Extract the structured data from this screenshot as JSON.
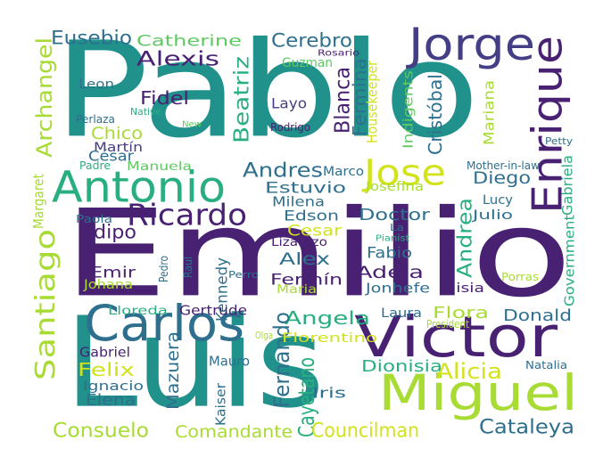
{
  "palette": {
    "dark_purple": "#482173",
    "indigo": "#433E85",
    "blue": "#2E6F8E",
    "teal": "#21918C",
    "green_teal": "#29AF7F",
    "green": "#5EC962",
    "lime": "#A8DB34",
    "yellow": "#D2E21B"
  },
  "words": [
    {
      "text": "Pablo",
      "color": "#21918C"
    },
    {
      "text": "Emilio",
      "color": "#482173"
    },
    {
      "text": "Luis",
      "color": "#21918C"
    },
    {
      "text": "Carlos",
      "color": "#2E6F8E"
    },
    {
      "text": "Victor",
      "color": "#482173"
    },
    {
      "text": "Miguel",
      "color": "#A8DB34"
    },
    {
      "text": "Antonio",
      "color": "#29AF7F"
    },
    {
      "text": "Jorge",
      "color": "#433E85"
    },
    {
      "text": "Enrique",
      "color": "#482173"
    },
    {
      "text": "Jose",
      "color": "#D2E21B"
    },
    {
      "text": "Ricardo",
      "color": "#482173"
    },
    {
      "text": "Santiago",
      "color": "#A8DB34"
    },
    {
      "text": "Archangel",
      "color": "#A8DB34"
    },
    {
      "text": "Eusebio",
      "color": "#2E6F8E"
    },
    {
      "text": "Catherine",
      "color": "#5EC962"
    },
    {
      "text": "Alexis",
      "color": "#482173"
    },
    {
      "text": "Cerebro",
      "color": "#2E6F8E"
    },
    {
      "text": "Guzman",
      "color": "#5EC962"
    },
    {
      "text": "Rosario",
      "color": "#482173"
    },
    {
      "text": "Leon",
      "color": "#2E6F8E"
    },
    {
      "text": "Native",
      "color": "#29AF7F"
    },
    {
      "text": "Fidel",
      "color": "#482173"
    },
    {
      "text": "Chico",
      "color": "#A8DB34"
    },
    {
      "text": "New",
      "color": "#5EC962"
    },
    {
      "text": "Perlaza",
      "color": "#2E6F8E"
    },
    {
      "text": "Martín",
      "color": "#433E85"
    },
    {
      "text": "César",
      "color": "#2E6F8E"
    },
    {
      "text": "Manuela",
      "color": "#5EC962"
    },
    {
      "text": "Padre",
      "color": "#29AF7F"
    },
    {
      "text": "Margaret",
      "color": "#A8DB34"
    },
    {
      "text": "Beatriz",
      "color": "#29AF7F"
    },
    {
      "text": "Layo",
      "color": "#433E85"
    },
    {
      "text": "Rodrigo",
      "color": "#482173"
    },
    {
      "text": "Blanca",
      "color": "#482173"
    },
    {
      "text": "Fermina",
      "color": "#2E6F8E"
    },
    {
      "text": "Housekeeper",
      "color": "#D2E21B"
    },
    {
      "text": "Cristóbal",
      "color": "#2E6F8E"
    },
    {
      "text": "Indigents",
      "color": "#5EC962"
    },
    {
      "text": "Mariana",
      "color": "#A8DB34"
    },
    {
      "text": "Petty",
      "color": "#2E6F8E"
    },
    {
      "text": "Mother-in-law",
      "color": "#2E6F8E"
    },
    {
      "text": "Gabriela",
      "color": "#29AF7F"
    },
    {
      "text": "Andres",
      "color": "#2E6F8E"
    },
    {
      "text": "Marco",
      "color": "#2E6F8E"
    },
    {
      "text": "Estuvio",
      "color": "#2E6F8E"
    },
    {
      "text": "Diego",
      "color": "#2E6F8E"
    },
    {
      "text": "Josefina",
      "color": "#A8DB34"
    },
    {
      "text": "Milena",
      "color": "#2E6F8E"
    },
    {
      "text": "Lucy",
      "color": "#2E6F8E"
    },
    {
      "text": "Doctor",
      "color": "#2E6F8E"
    },
    {
      "text": "Edson",
      "color": "#2E6F8E"
    },
    {
      "text": "Julio",
      "color": "#2E6F8E"
    },
    {
      "text": "Paola",
      "color": "#2E6F8E"
    },
    {
      "text": "Edipo",
      "color": "#482173"
    },
    {
      "text": "Cesar",
      "color": "#D2E21B"
    },
    {
      "text": "La",
      "color": "#2E6F8E"
    },
    {
      "text": "Pianist",
      "color": "#29AF7F"
    },
    {
      "text": "Lizarazo",
      "color": "#482173"
    },
    {
      "text": "Andrea",
      "color": "#29AF7F"
    },
    {
      "text": "Fabio",
      "color": "#2E6F8E"
    },
    {
      "text": "Government",
      "color": "#29AF7F"
    },
    {
      "text": "Alex",
      "color": "#2E6F8E"
    },
    {
      "text": "Pedro",
      "color": "#2E6F8E"
    },
    {
      "text": "Raul",
      "color": "#2E6F8E"
    },
    {
      "text": "Emir",
      "color": "#482173"
    },
    {
      "text": "Johana",
      "color": "#A8DB34"
    },
    {
      "text": "Kennedy",
      "color": "#2E6F8E"
    },
    {
      "text": "Perro",
      "color": "#2E6F8E"
    },
    {
      "text": "Adela",
      "color": "#482173"
    },
    {
      "text": "Fermín",
      "color": "#482173"
    },
    {
      "text": "Maria",
      "color": "#A8DB34"
    },
    {
      "text": "Jonhefe",
      "color": "#2E6F8E"
    },
    {
      "text": "Misia",
      "color": "#482173"
    },
    {
      "text": "Porras",
      "color": "#A8DB34"
    },
    {
      "text": "Lloreda",
      "color": "#29AF7F"
    },
    {
      "text": "Gertrude",
      "color": "#482173"
    },
    {
      "text": "Angela",
      "color": "#29AF7F"
    },
    {
      "text": "Laura",
      "color": "#2E6F8E"
    },
    {
      "text": "Flora",
      "color": "#A8DB34"
    },
    {
      "text": "Donald",
      "color": "#2E6F8E"
    },
    {
      "text": "Olga",
      "color": "#A8DB34"
    },
    {
      "text": "Fernando",
      "color": "#2E6F8E"
    },
    {
      "text": "Florentino",
      "color": "#D2E21B"
    },
    {
      "text": "President",
      "color": "#A8DB34"
    },
    {
      "text": "Gabriel",
      "color": "#482173"
    },
    {
      "text": "Mazuera",
      "color": "#2E6F8E"
    },
    {
      "text": "Mauro",
      "color": "#2E6F8E"
    },
    {
      "text": "Felix",
      "color": "#D2E21B"
    },
    {
      "text": "Ignacio",
      "color": "#2E6F8E"
    },
    {
      "text": "Elena",
      "color": "#2E6F8E"
    },
    {
      "text": "Kaiser",
      "color": "#2E6F8E"
    },
    {
      "text": "Cayetano",
      "color": "#29AF7F"
    },
    {
      "text": "Iris",
      "color": "#2E6F8E"
    },
    {
      "text": "Dionisia",
      "color": "#29AF7F"
    },
    {
      "text": "Alicia",
      "color": "#D2E21B"
    },
    {
      "text": "Natalia",
      "color": "#2E6F8E"
    },
    {
      "text": "Consuelo",
      "color": "#A8DB34"
    },
    {
      "text": "Comandante",
      "color": "#A8DB34"
    },
    {
      "text": "Councilman",
      "color": "#D2E21B"
    },
    {
      "text": "Cataleya",
      "color": "#2E6F8E"
    }
  ]
}
